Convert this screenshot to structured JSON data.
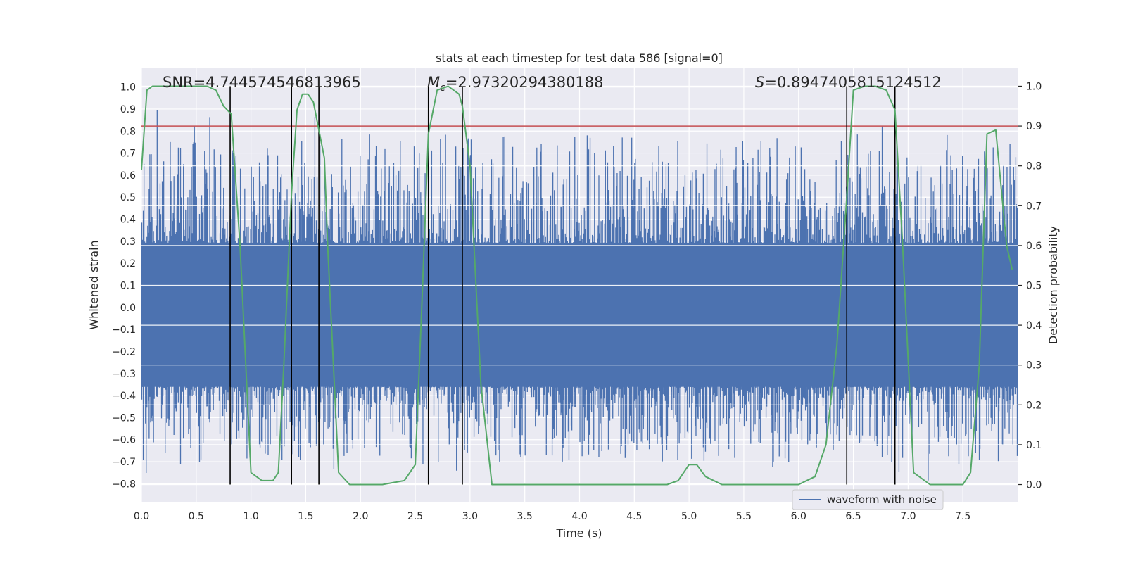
{
  "chart_data": {
    "type": "line",
    "title": "stats at each timestep for test data 586 [signal=0]",
    "xlabel": "Time (s)",
    "ylabel_left": "Whitened strain",
    "ylabel_right": "Detection probability",
    "xlim": [
      0.0,
      8.0
    ],
    "ylim_left": [
      -0.885,
      1.085
    ],
    "ylim_right": [
      -0.045,
      1.045
    ],
    "x_ticks": [
      "0.0",
      "0.5",
      "1.0",
      "1.5",
      "2.0",
      "2.5",
      "3.0",
      "3.5",
      "4.0",
      "4.5",
      "5.0",
      "5.5",
      "6.0",
      "6.5",
      "7.0",
      "7.5"
    ],
    "y_left_ticks": [
      "1.0",
      "0.9",
      "0.8",
      "0.7",
      "0.6",
      "0.5",
      "0.4",
      "0.3",
      "0.2",
      "0.1",
      "0.0",
      "−0.1",
      "−0.2",
      "−0.3",
      "−0.4",
      "−0.5",
      "−0.6",
      "−0.7",
      "−0.8"
    ],
    "y_right_ticks": [
      "1.0",
      "0.9",
      "0.8",
      "0.7",
      "0.6",
      "0.5",
      "0.4",
      "0.3",
      "0.2",
      "0.1",
      "0.0"
    ],
    "grid": true,
    "annotations": {
      "snr": "SNR=4.744574546813965",
      "mc_symbol": "M",
      "mc_sub": "c",
      "mc_value": "=2.97320294380188",
      "s_symbol": "S",
      "s_value": "=0.8947405815124512"
    },
    "legend": {
      "placement": "lower-center",
      "entries": [
        "waveform with noise"
      ]
    },
    "threshold": {
      "axis": "right",
      "value": 0.9,
      "color": "#c44e52"
    },
    "vertical_lines": [
      0.81,
      1.37,
      1.62,
      2.62,
      2.93,
      6.44,
      6.88
    ],
    "noise_band": {
      "name": "waveform with noise",
      "color": "#4c72b0",
      "core_low": -0.36,
      "core_high": 0.29,
      "spike_max": 0.91,
      "spike_min": -0.79
    },
    "probability_series": {
      "name": "detection probability",
      "color": "#55a868",
      "x": [
        0.0,
        0.05,
        0.1,
        0.2,
        0.3,
        0.4,
        0.5,
        0.6,
        0.68,
        0.75,
        0.82,
        0.9,
        1.0,
        1.1,
        1.2,
        1.25,
        1.3,
        1.37,
        1.42,
        1.47,
        1.52,
        1.57,
        1.62,
        1.67,
        1.7,
        1.8,
        1.9,
        2.0,
        2.2,
        2.4,
        2.5,
        2.56,
        2.62,
        2.7,
        2.8,
        2.9,
        2.93,
        3.0,
        3.1,
        3.2,
        3.5,
        4.0,
        4.5,
        4.8,
        4.9,
        5.0,
        5.07,
        5.15,
        5.3,
        5.6,
        5.8,
        6.0,
        6.15,
        6.25,
        6.35,
        6.44,
        6.5,
        6.6,
        6.7,
        6.8,
        6.88,
        6.95,
        7.05,
        7.2,
        7.5,
        7.57,
        7.65,
        7.72,
        7.8,
        7.9,
        7.95
      ],
      "y": [
        0.79,
        0.99,
        1.0,
        1.0,
        1.0,
        1.0,
        1.0,
        1.0,
        0.99,
        0.95,
        0.93,
        0.6,
        0.03,
        0.01,
        0.01,
        0.03,
        0.3,
        0.73,
        0.94,
        0.98,
        0.98,
        0.96,
        0.89,
        0.82,
        0.6,
        0.03,
        0.0,
        0.0,
        0.0,
        0.01,
        0.05,
        0.45,
        0.88,
        0.99,
        1.0,
        0.98,
        0.95,
        0.8,
        0.25,
        0.0,
        0.0,
        0.0,
        0.0,
        0.0,
        0.01,
        0.05,
        0.05,
        0.02,
        0.0,
        0.0,
        0.0,
        0.0,
        0.02,
        0.1,
        0.35,
        0.72,
        0.99,
        1.0,
        1.0,
        0.99,
        0.94,
        0.6,
        0.03,
        0.0,
        0.0,
        0.03,
        0.3,
        0.88,
        0.89,
        0.6,
        0.54
      ]
    }
  }
}
